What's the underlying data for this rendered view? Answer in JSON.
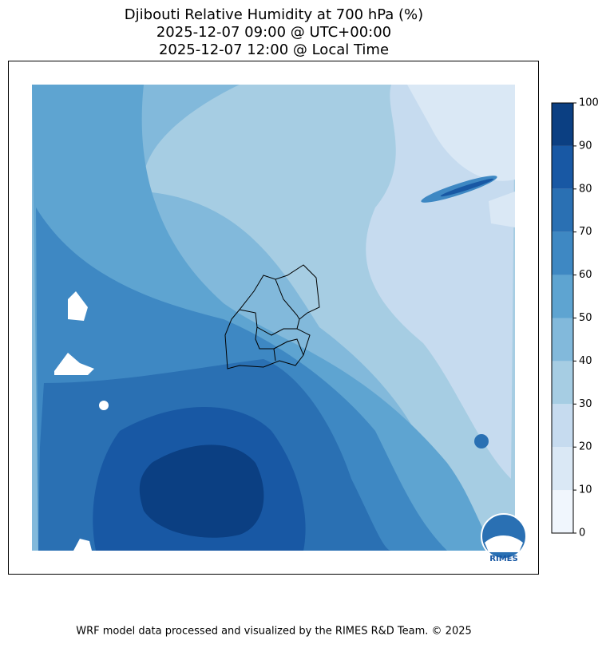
{
  "title": [
    "Djibouti Relative Humidity at 700 hPa (%)",
    "2025-12-07 09:00 @ UTC+00:00",
    "2025-12-07 12:00 @ Local Time"
  ],
  "colorbar": {
    "ticks": [
      0,
      10,
      20,
      30,
      40,
      50,
      60,
      70,
      80,
      90,
      100
    ],
    "colors": [
      "#f0f6fd",
      "#dae8f5",
      "#c6dbef",
      "#a6cde3",
      "#82b9db",
      "#5ea4d1",
      "#3e88c3",
      "#2a70b3",
      "#1858a4",
      "#0b3f82"
    ]
  },
  "logo_text": "RIMES",
  "footer": "WRF model data processed and visualized by the RIMES R&D Team. © 2025"
}
